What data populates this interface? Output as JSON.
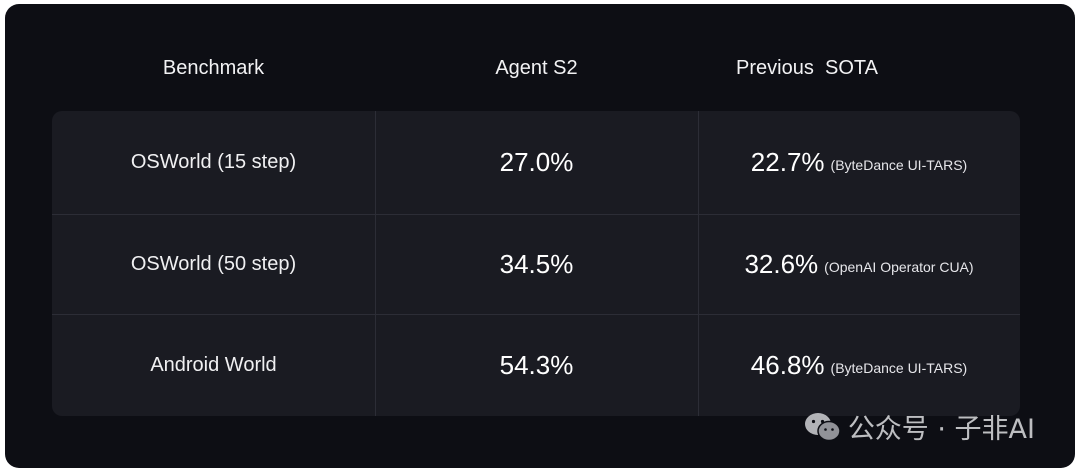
{
  "table": {
    "headers": [
      "Benchmark",
      "Agent S2",
      "Previous  SOTA"
    ],
    "rows": [
      {
        "benchmark": "OSWorld (15 step)",
        "agent_s2": "27.0%",
        "prev_value": "22.7%",
        "prev_source": "(ByteDance UI-TARS)"
      },
      {
        "benchmark": "OSWorld (50 step)",
        "agent_s2": "34.5%",
        "prev_value": "32.6%",
        "prev_source": "(OpenAI Operator CUA)"
      },
      {
        "benchmark": "Android World",
        "agent_s2": "54.3%",
        "prev_value": "46.8%",
        "prev_source": "(ByteDance UI-TARS)"
      }
    ]
  },
  "watermark": {
    "icon": "wechat-icon",
    "text": "公众号 · 子非AI"
  },
  "chart_data": {
    "type": "table",
    "columns": [
      "Benchmark",
      "Agent S2",
      "Previous  SOTA"
    ],
    "rows": [
      [
        "OSWorld (15 step)",
        27.0,
        22.7
      ],
      [
        "OSWorld (50 step)",
        34.5,
        32.6
      ],
      [
        "Android World",
        54.3,
        46.8
      ]
    ],
    "units": "%",
    "annotations": [
      "(ByteDance UI-TARS)",
      "(OpenAI Operator CUA)",
      "(ByteDance UI-TARS)"
    ]
  },
  "colors": {
    "background": "#0d0e14",
    "table_bg": "#1a1b22",
    "divider": "#2c2d36",
    "text": "#f2f2f4"
  }
}
